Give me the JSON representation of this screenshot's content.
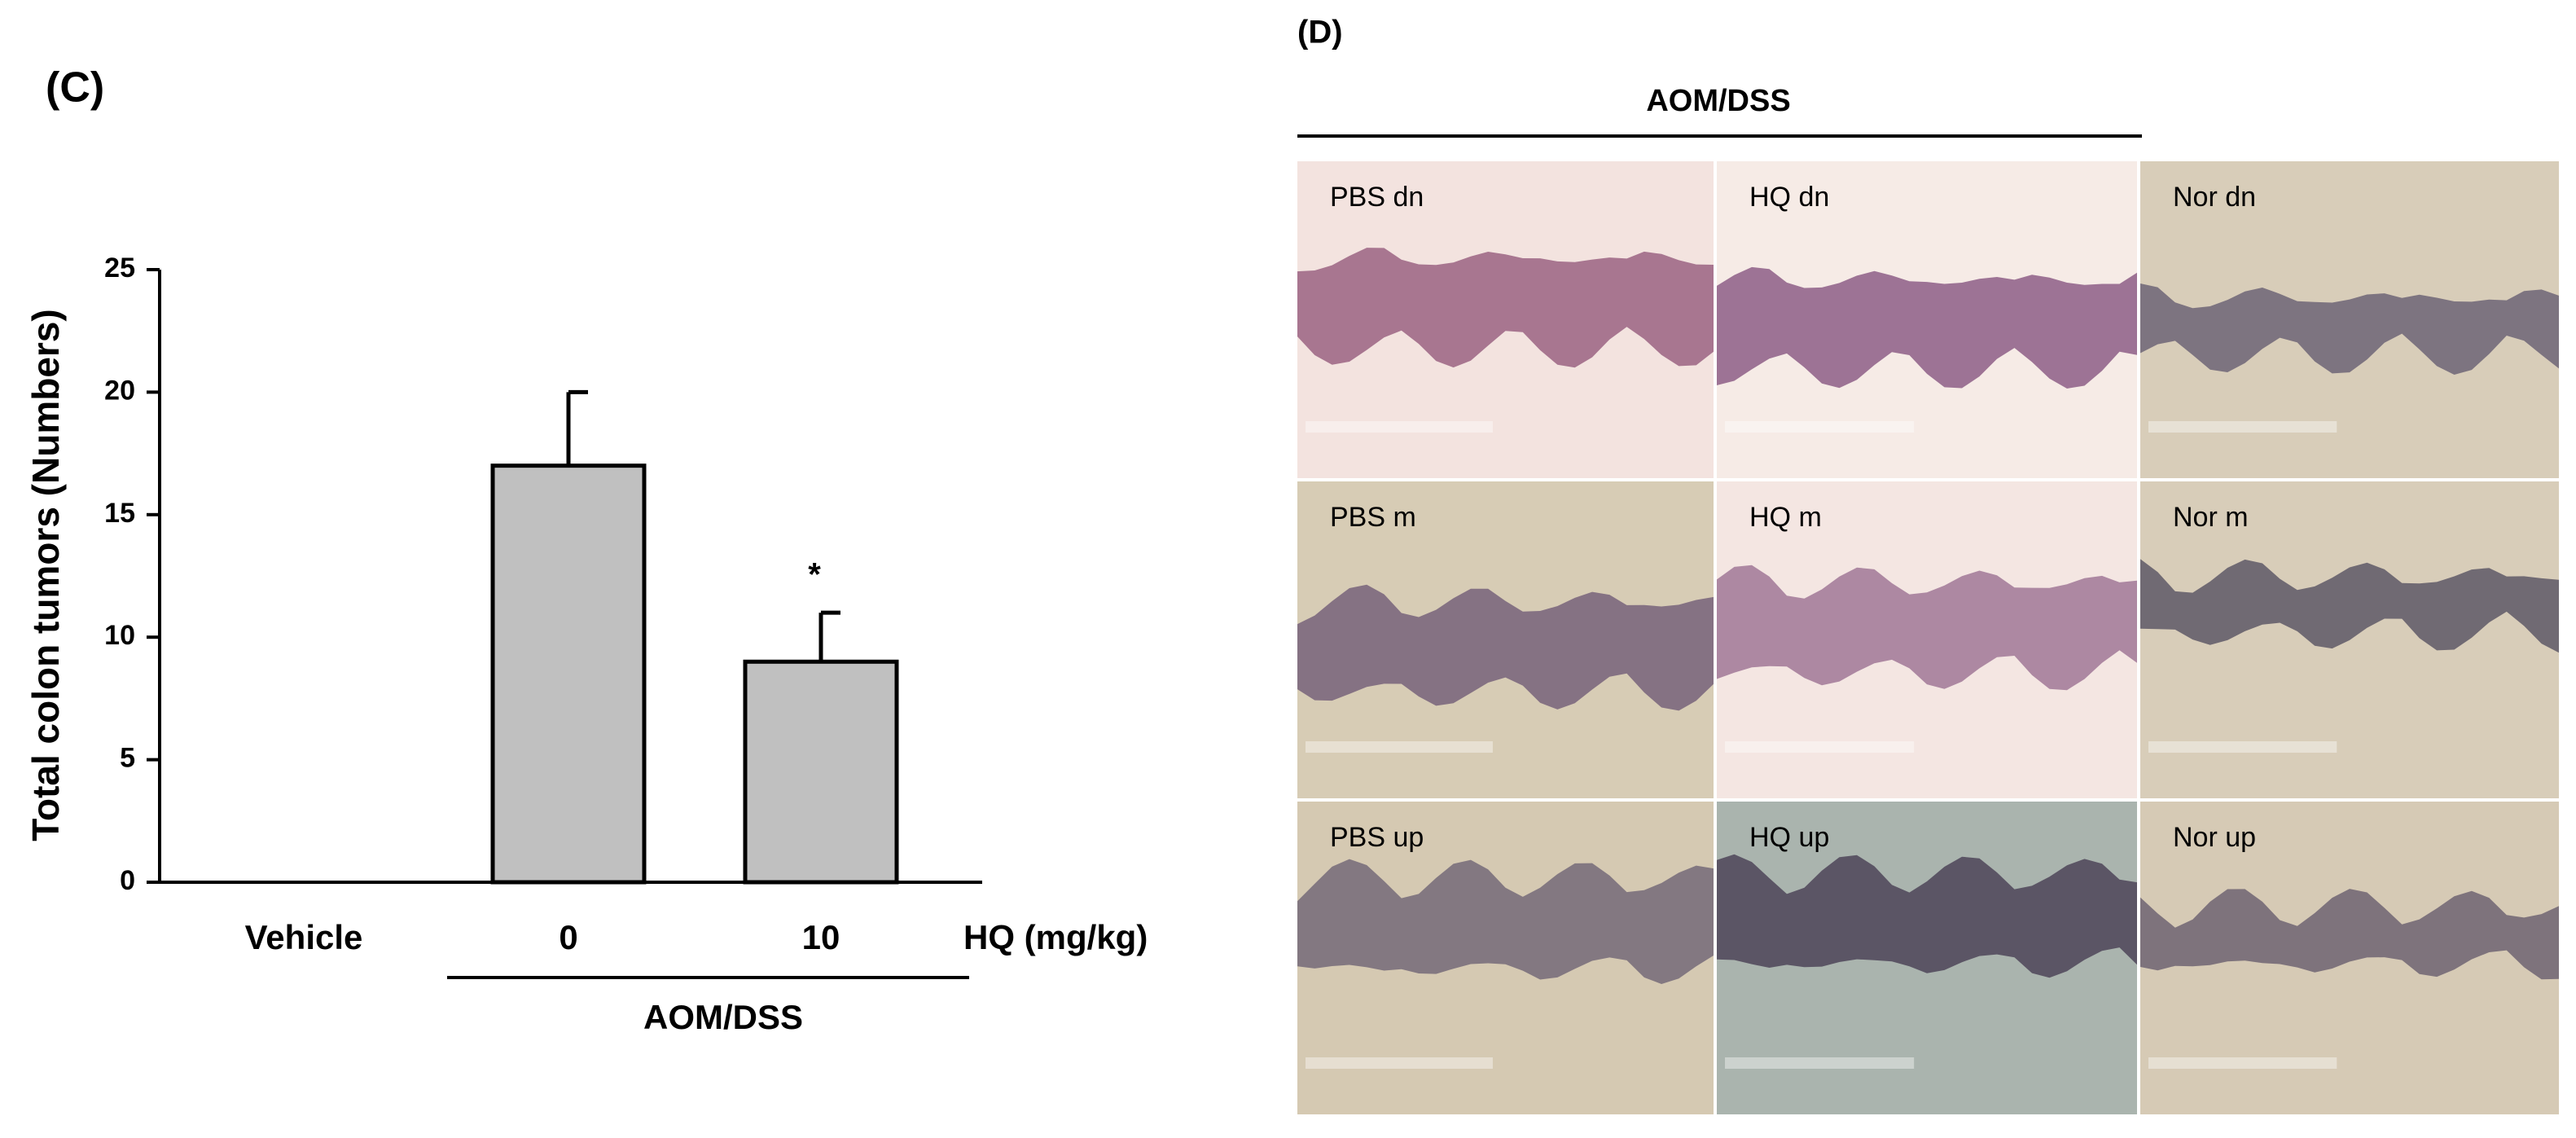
{
  "chart_data": {
    "type": "bar",
    "panel_label": "(C)",
    "ylabel": "Total colon tumors (Numbers)",
    "xlabel": "HQ (mg/kg)",
    "categories": [
      "Vehicle",
      "0",
      "10"
    ],
    "values": [
      0,
      17,
      9
    ],
    "errors": [
      null,
      3,
      2
    ],
    "color": "#c0c0c0",
    "group_label": "AOM/DSS",
    "annotations": [
      {
        "x": "10",
        "text": "*"
      }
    ],
    "ylim": [
      0,
      25
    ],
    "yticks": [
      0,
      5,
      10,
      15,
      20,
      25
    ],
    "grid": false
  },
  "histology": {
    "panel_label": "(D)",
    "group_label": "AOM/DSS",
    "images": [
      [
        "PBS dn",
        "HQ dn",
        "Nor dn"
      ],
      [
        "PBS m",
        "HQ m",
        "Nor m"
      ],
      [
        "PBS up",
        "HQ up",
        "Nor up"
      ]
    ]
  }
}
